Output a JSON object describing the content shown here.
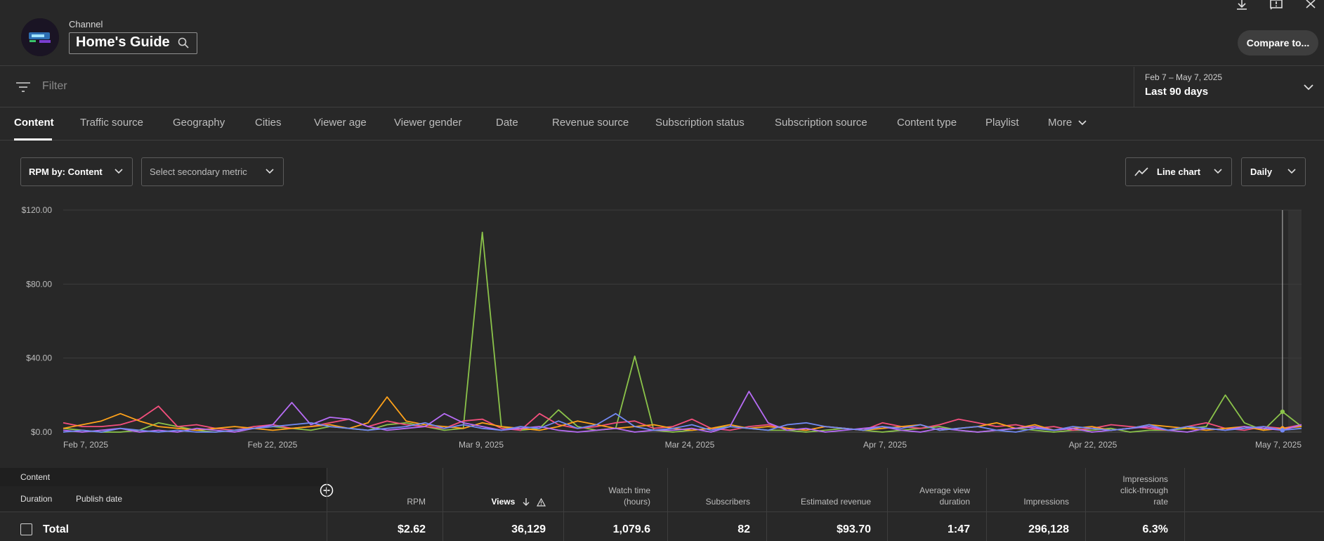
{
  "header": {
    "channel_label": "Channel",
    "channel_name": "Home's Guide",
    "compare_label": "Compare to..."
  },
  "filter": {
    "placeholder": "Filter",
    "date_range": "Feb 7 – May 7, 2025",
    "period": "Last 90 days"
  },
  "tabs": [
    {
      "label": "Content",
      "active": true
    },
    {
      "label": "Traffic source"
    },
    {
      "label": "Geography"
    },
    {
      "label": "Cities"
    },
    {
      "label": "Viewer age"
    },
    {
      "label": "Viewer gender"
    },
    {
      "label": "Date"
    },
    {
      "label": "Revenue source"
    },
    {
      "label": "Subscription status"
    },
    {
      "label": "Subscription source"
    },
    {
      "label": "Content type"
    },
    {
      "label": "Playlist"
    },
    {
      "label": "More"
    }
  ],
  "controls": {
    "primary_metric": "RPM by: Content",
    "secondary_metric": "Select secondary metric",
    "chart_type": "Line chart",
    "granularity": "Daily"
  },
  "chart_data": {
    "type": "line",
    "y_ticks": [
      "$120.00",
      "$80.00",
      "$40.00",
      "$0.00"
    ],
    "ylim": [
      0,
      120
    ],
    "x_ticks": [
      "Feb 7, 2025",
      "Feb 22, 2025",
      "Mar 9, 2025",
      "Mar 24, 2025",
      "Apr 7, 2025",
      "Apr 22, 2025",
      "May 7, 2025"
    ],
    "hover_day": 64,
    "series": [
      {
        "color": "#8bc34a",
        "values": [
          2,
          1,
          0,
          0,
          1,
          5,
          3,
          1,
          0,
          1,
          2,
          3,
          2,
          1,
          3,
          2,
          1,
          4,
          5,
          3,
          1,
          2,
          108,
          3,
          1,
          2,
          12,
          3,
          1,
          2,
          41,
          1,
          0,
          1,
          2,
          3,
          2,
          1,
          1,
          0,
          1,
          2,
          1,
          0,
          1,
          2,
          3,
          1,
          0,
          1,
          2,
          1,
          0,
          1,
          1,
          2,
          0,
          1,
          1,
          2,
          3,
          20,
          5,
          1,
          11,
          3
        ]
      },
      {
        "color": "#f44f7d",
        "values": [
          5,
          3,
          3,
          4,
          7,
          14,
          3,
          4,
          2,
          1,
          3,
          4,
          2,
          3,
          5,
          7,
          3,
          6,
          4,
          3,
          2,
          6,
          7,
          2,
          1,
          10,
          4,
          2,
          3,
          5,
          6,
          2,
          3,
          7,
          2,
          1,
          3,
          4,
          2,
          1,
          3,
          2,
          1,
          5,
          3,
          2,
          4,
          7,
          5,
          3,
          4,
          2,
          3,
          1,
          2,
          4,
          3,
          2,
          1,
          3,
          5,
          2,
          1,
          3,
          2,
          4
        ]
      },
      {
        "color": "#ffa21a",
        "values": [
          2,
          4,
          6,
          10,
          6,
          3,
          2,
          1,
          2,
          3,
          2,
          1,
          2,
          3,
          4,
          2,
          5,
          19,
          6,
          4,
          3,
          2,
          5,
          3,
          2,
          1,
          3,
          6,
          4,
          2,
          3,
          4,
          2,
          1,
          2,
          4,
          2,
          3,
          2,
          1,
          3,
          2,
          1,
          2,
          3,
          4,
          1,
          2,
          3,
          5,
          2,
          4,
          1,
          2,
          3,
          1,
          2,
          4,
          3,
          2,
          1,
          2,
          3,
          1,
          2,
          3
        ]
      },
      {
        "color": "#b76cf5",
        "values": [
          1,
          0,
          1,
          2,
          0,
          1,
          0,
          2,
          1,
          0,
          2,
          4,
          16,
          4,
          8,
          7,
          3,
          1,
          2,
          3,
          10,
          5,
          3,
          1,
          2,
          3,
          1,
          0,
          1,
          2,
          0,
          1,
          1,
          2,
          0,
          3,
          22,
          5,
          1,
          2,
          0,
          1,
          2,
          3,
          1,
          0,
          2,
          1,
          0,
          1,
          2,
          3,
          1,
          2,
          0,
          1,
          2,
          3,
          1,
          0,
          2,
          1,
          3,
          2,
          1,
          4
        ]
      },
      {
        "color": "#7289f2",
        "values": [
          0,
          1,
          0,
          2,
          1,
          0,
          1,
          0,
          0,
          1,
          2,
          3,
          4,
          5,
          3,
          2,
          1,
          2,
          3,
          5,
          2,
          4,
          2,
          1,
          3,
          2,
          6,
          2,
          4,
          10,
          3,
          1,
          2,
          4,
          1,
          3,
          2,
          1,
          4,
          5,
          3,
          2,
          1,
          3,
          2,
          4,
          1,
          2,
          3,
          1,
          0,
          2,
          1,
          3,
          2,
          1,
          2,
          4,
          1,
          3,
          2,
          1,
          2,
          3,
          1,
          2
        ]
      }
    ]
  },
  "table": {
    "group_label": "Content",
    "duration_label": "Duration",
    "publish_label": "Publish date",
    "columns": [
      {
        "label1": "",
        "label2": "RPM",
        "value": "$2.62"
      },
      {
        "label1": "",
        "label2": "Views",
        "value": "36,129",
        "sorted": true
      },
      {
        "label1": "Watch time",
        "label2": "(hours)",
        "value": "1,079.6"
      },
      {
        "label1": "",
        "label2": "Subscribers",
        "value": "82"
      },
      {
        "label1": "",
        "label2": "Estimated revenue",
        "value": "$93.70"
      },
      {
        "label1": "Average view",
        "label2": "duration",
        "value": "1:47"
      },
      {
        "label1": "",
        "label2": "Impressions",
        "value": "296,128"
      },
      {
        "label0": "Impressions",
        "label1": "click-through",
        "label2": "rate",
        "value": "6.3%"
      }
    ],
    "total_label": "Total"
  },
  "icons": [
    "search-icon",
    "download-icon",
    "feedback-icon",
    "close-icon",
    "filter-icon",
    "chevron-down-icon",
    "line-chart-icon",
    "add-column-icon",
    "sort-down-icon",
    "warning-icon",
    "checkbox"
  ]
}
